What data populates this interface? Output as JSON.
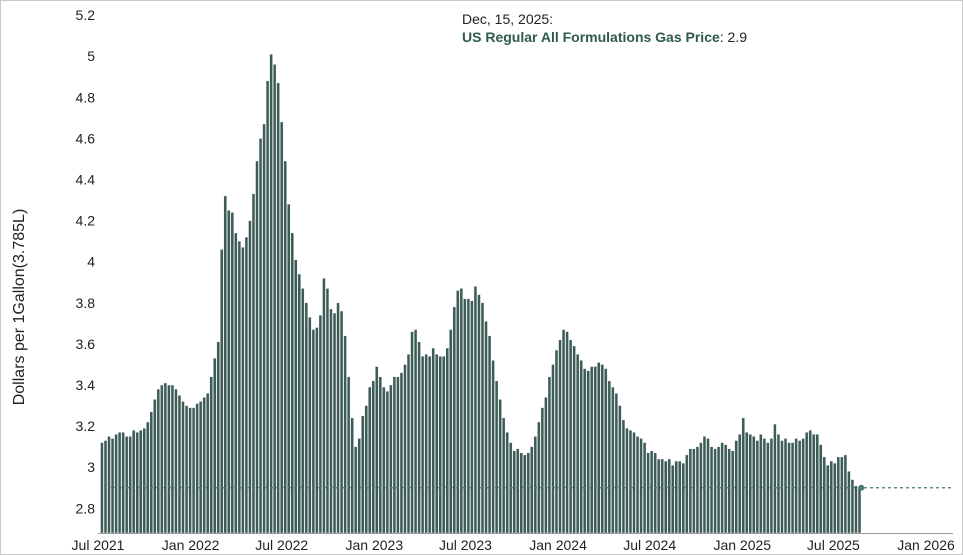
{
  "chart_data": {
    "type": "bar",
    "series_name": "US Regular All Formulations Gas Price",
    "ylabel": "Dollars per 1Gallon(3.785L)",
    "xlabel": "",
    "ylim": [
      2.68,
      5.22
    ],
    "y_ticks": [
      2.8,
      3,
      3.2,
      3.4,
      3.6,
      3.8,
      4,
      4.2,
      4.4,
      4.6,
      4.8,
      5,
      5.2
    ],
    "y_tick_labels": [
      "2.8",
      "3",
      "3.2",
      "3.4",
      "3.6",
      "3.8",
      "4",
      "4.2",
      "4.4",
      "4.6",
      "4.8",
      "5",
      "5.2"
    ],
    "x_start": "2021-07-05",
    "interval_days": 7,
    "x_ticks": [
      {
        "label": "Jul 2021",
        "date": "2021-07-01"
      },
      {
        "label": "Jan 2022",
        "date": "2022-01-01"
      },
      {
        "label": "Jul 2022",
        "date": "2022-07-01"
      },
      {
        "label": "Jan 2023",
        "date": "2023-01-01"
      },
      {
        "label": "Jul 2023",
        "date": "2023-07-01"
      },
      {
        "label": "Jan 2024",
        "date": "2024-01-01"
      },
      {
        "label": "Jul 2024",
        "date": "2024-07-01"
      },
      {
        "label": "Jan 2025",
        "date": "2025-01-01"
      },
      {
        "label": "Jul 2025",
        "date": "2025-07-01"
      },
      {
        "label": "Jan 2026",
        "date": "2026-01-01"
      }
    ],
    "values": [
      3.12,
      3.13,
      3.15,
      3.14,
      3.16,
      3.17,
      3.17,
      3.15,
      3.15,
      3.18,
      3.17,
      3.18,
      3.19,
      3.22,
      3.27,
      3.33,
      3.38,
      3.4,
      3.41,
      3.4,
      3.4,
      3.38,
      3.35,
      3.32,
      3.3,
      3.29,
      3.29,
      3.31,
      3.32,
      3.34,
      3.36,
      3.44,
      3.53,
      3.61,
      4.06,
      4.32,
      4.25,
      4.24,
      4.14,
      4.1,
      4.07,
      4.12,
      4.2,
      4.33,
      4.49,
      4.6,
      4.67,
      4.88,
      5.01,
      4.96,
      4.87,
      4.68,
      4.49,
      4.28,
      4.14,
      4.01,
      3.94,
      3.87,
      3.8,
      3.73,
      3.67,
      3.68,
      3.74,
      3.92,
      3.87,
      3.77,
      3.75,
      3.8,
      3.76,
      3.64,
      3.44,
      3.24,
      3.1,
      3.14,
      3.25,
      3.3,
      3.39,
      3.42,
      3.49,
      3.44,
      3.39,
      3.37,
      3.4,
      3.44,
      3.44,
      3.46,
      3.5,
      3.55,
      3.66,
      3.67,
      3.61,
      3.54,
      3.55,
      3.54,
      3.58,
      3.55,
      3.54,
      3.54,
      3.58,
      3.67,
      3.78,
      3.86,
      3.87,
      3.82,
      3.82,
      3.81,
      3.88,
      3.84,
      3.8,
      3.71,
      3.64,
      3.52,
      3.42,
      3.33,
      3.24,
      3.17,
      3.12,
      3.08,
      3.09,
      3.07,
      3.06,
      3.07,
      3.1,
      3.15,
      3.22,
      3.29,
      3.34,
      3.44,
      3.5,
      3.57,
      3.62,
      3.67,
      3.66,
      3.62,
      3.59,
      3.55,
      3.52,
      3.48,
      3.47,
      3.49,
      3.49,
      3.51,
      3.5,
      3.48,
      3.42,
      3.39,
      3.36,
      3.3,
      3.23,
      3.19,
      3.18,
      3.17,
      3.15,
      3.14,
      3.12,
      3.07,
      3.08,
      3.07,
      3.04,
      3.04,
      3.03,
      3.04,
      3.01,
      3.03,
      3.03,
      3.02,
      3.06,
      3.09,
      3.09,
      3.1,
      3.12,
      3.15,
      3.14,
      3.1,
      3.09,
      3.1,
      3.12,
      3.11,
      3.09,
      3.08,
      3.13,
      3.16,
      3.24,
      3.17,
      3.16,
      3.15,
      3.13,
      3.16,
      3.14,
      3.12,
      3.14,
      3.21,
      3.16,
      3.13,
      3.14,
      3.12,
      3.12,
      3.14,
      3.13,
      3.14,
      3.17,
      3.18,
      3.16,
      3.16,
      3.11,
      3.05,
      3.01,
      3.03,
      3.02,
      3.05,
      3.05,
      3.06,
      2.98,
      2.94,
      2.91,
      2.9
    ],
    "reference_line_value": 2.9,
    "bar_color": "#3d5c58",
    "bar_edge_color": "#ffffff",
    "reference_line_color": "#4a7a6e",
    "tooltip": {
      "date": "Dec, 15, 2025:",
      "series": "US Regular All Formulations Gas Price",
      "value_text": ": 2.9",
      "series_color": "#2e5a4f"
    }
  }
}
